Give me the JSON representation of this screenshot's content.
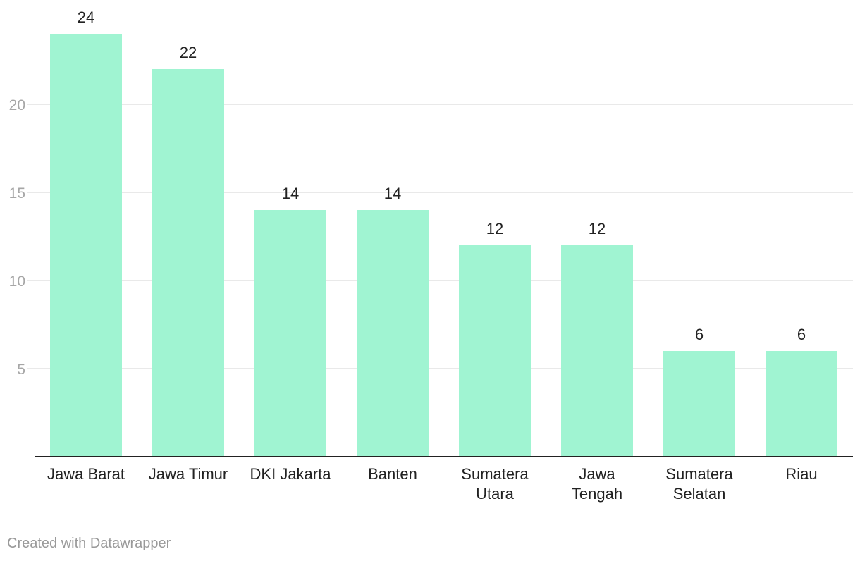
{
  "chart_data": {
    "type": "bar",
    "categories": [
      [
        "Jawa Barat"
      ],
      [
        "Jawa Timur"
      ],
      [
        "DKI Jakarta"
      ],
      [
        "Banten"
      ],
      [
        "Sumatera",
        "Utara"
      ],
      [
        "Jawa",
        "Tengah"
      ],
      [
        "Sumatera",
        "Selatan"
      ],
      [
        "Riau"
      ]
    ],
    "values": [
      24,
      22,
      14,
      14,
      12,
      12,
      6,
      6
    ],
    "yticks": [
      5,
      10,
      15,
      20
    ],
    "ylim": [
      0,
      24
    ],
    "grid": true,
    "bar_color": "#a0f4d2",
    "gridline_color": "#e2e2e2",
    "axis_color": "#222222"
  },
  "footer": {
    "credit": "Created with Datawrapper"
  }
}
